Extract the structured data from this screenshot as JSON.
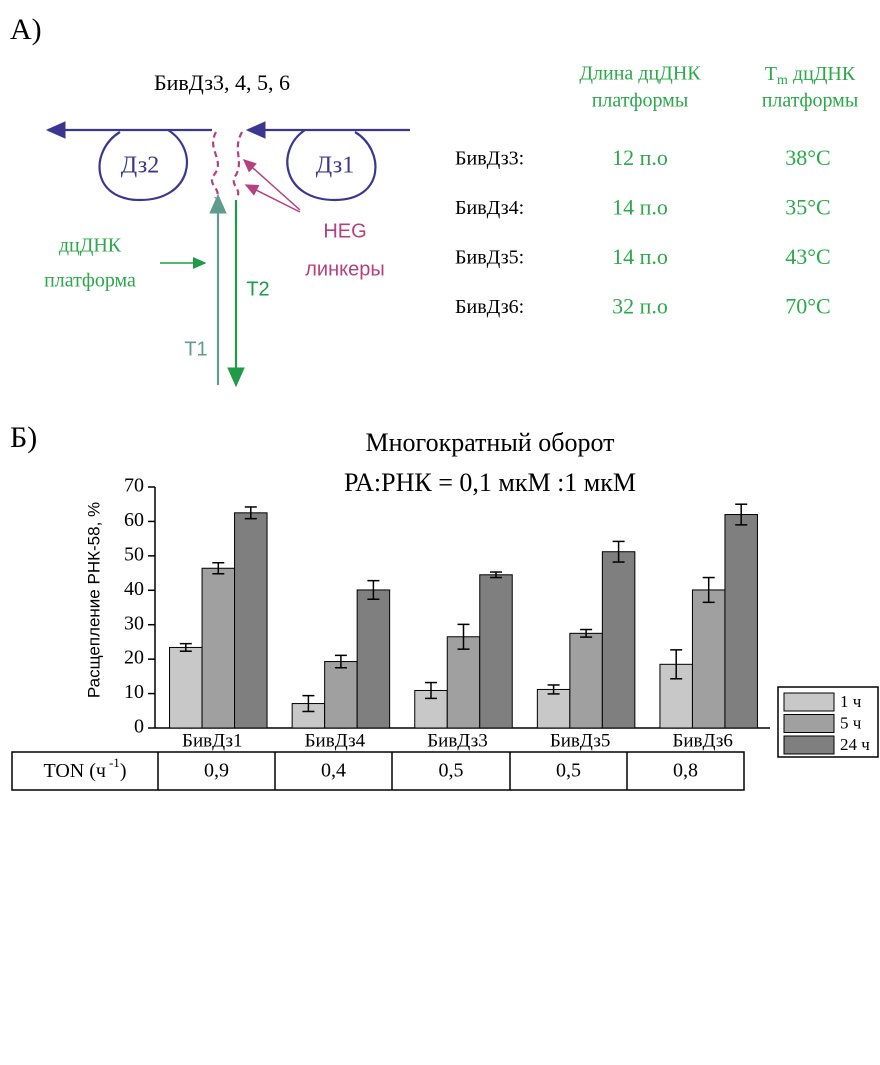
{
  "panel_a": {
    "label": "А)",
    "construct": "БивДз3, 4, 5, 6",
    "diagram": {
      "dz2": "Дз2",
      "dz1": "Дз1",
      "platform": [
        "дцДНК",
        "платформа"
      ],
      "linkers": [
        "HEG",
        "линкеры"
      ],
      "t1": "T1",
      "t2": "T2"
    },
    "table": {
      "length_header": [
        "Длина дцДНК",
        "платформы"
      ],
      "tm_header": {
        "symbol": "T",
        "subscript": "m",
        "text": "дцДНК",
        "line2": "платформы"
      },
      "rows": [
        [
          "БивДз3:",
          "12 п.о",
          "38°C"
        ],
        [
          "БивДз4:",
          "14 п.о",
          "35°C"
        ],
        [
          "БивДз5:",
          "14 п.о",
          "43°C"
        ],
        [
          "БивДз6:",
          "32 п.о",
          "70°C"
        ]
      ]
    }
  },
  "panel_b": {
    "label": "Б)"
  },
  "chart_data": {
    "type": "bar",
    "title": "Многократный оборот",
    "subtitle": "РА:РНК = 0,1 мкМ :1 мкМ",
    "y_label": "Расщепление РНК-58, %",
    "categories": [
      "БивДз1",
      "БивДз4",
      "БивДз3",
      "БивДз5",
      "БивДз6"
    ],
    "series": [
      {
        "name": "1 ч",
        "color": "#c8c8c8",
        "values": [
          23.4,
          7.1,
          10.9,
          11.2,
          18.5
        ],
        "errors": [
          1.1,
          2.3,
          2.3,
          1.3,
          4.2
        ]
      },
      {
        "name": "5 ч",
        "color": "#a0a0a0",
        "values": [
          46.4,
          19.3,
          26.5,
          27.5,
          40.1
        ],
        "errors": [
          1.6,
          1.8,
          3.6,
          1.1,
          3.6
        ]
      },
      {
        "name": "24 ч",
        "color": "#7f7f7f",
        "values": [
          62.5,
          40.1,
          44.5,
          51.2,
          62.0
        ],
        "errors": [
          1.7,
          2.7,
          0.8,
          3.0,
          3.0
        ]
      }
    ],
    "ylim": [
      0,
      70
    ],
    "yticks": [
      0,
      10,
      20,
      30,
      40,
      50,
      60,
      70
    ],
    "grid": false,
    "legend": "right"
  },
  "ton_table": {
    "header": {
      "text": "TON (ч",
      "superscript": "-1",
      "close": ")"
    },
    "values": [
      "0,9",
      "0,4",
      "0,5",
      "0,5",
      "0,8"
    ]
  }
}
